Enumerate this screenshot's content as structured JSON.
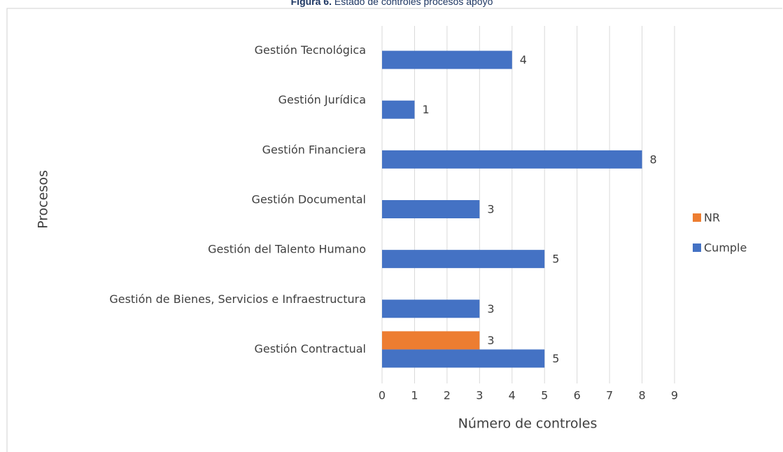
{
  "chart_data": {
    "type": "bar",
    "orientation": "horizontal",
    "figure_label": "Figura 6.",
    "title": "Estado de controles procesos apoyo",
    "x_label": "Número de controles",
    "y_label": "Procesos",
    "categories": [
      "Gestión Contractual",
      "Gestión de Bienes, Servicios e Infraestructura",
      "Gestión del Talento Humano",
      "Gestión Documental",
      "Gestión Financiera",
      "Gestión Jurídica",
      "Gestión Tecnológica"
    ],
    "series": [
      {
        "name": "NR",
        "color": "#ed7d31",
        "values": [
          3,
          null,
          null,
          null,
          null,
          null,
          null
        ]
      },
      {
        "name": "Cumple",
        "color": "#4472c4",
        "values": [
          5,
          3,
          5,
          3,
          8,
          1,
          4
        ]
      }
    ],
    "xlim": [
      0,
      9
    ],
    "xticks": [
      0,
      1,
      2,
      3,
      4,
      5,
      6,
      7,
      8,
      9
    ],
    "grid": true,
    "legend": "right"
  }
}
